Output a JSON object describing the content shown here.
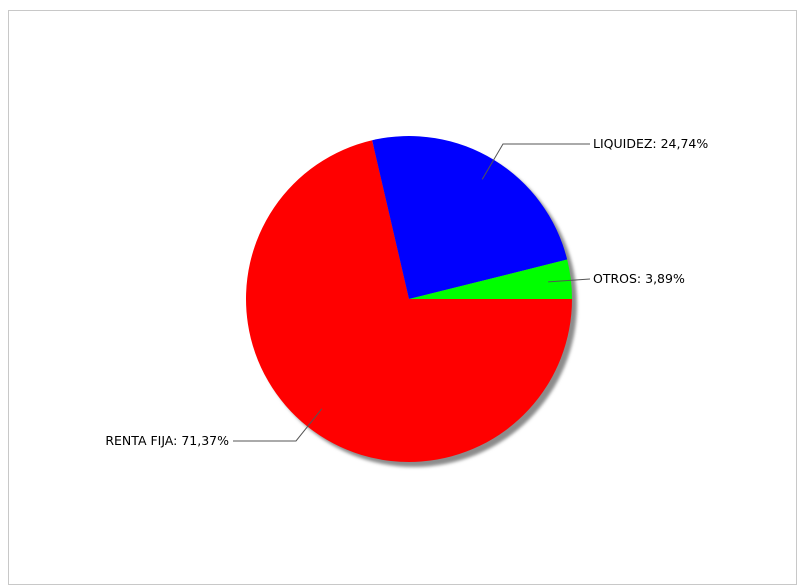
{
  "chart_data": {
    "type": "pie",
    "title": "",
    "slices": [
      {
        "label": "RENTA FIJA",
        "value": 71.37,
        "display": "RENTA FIJA: 71,37%",
        "color": "#ff0000"
      },
      {
        "label": "LIQUIDEZ",
        "value": 24.74,
        "display": "LIQUIDEZ: 24,74%",
        "color": "#0000ff"
      },
      {
        "label": "OTROS",
        "value": 3.89,
        "display": "OTROS: 3,89%",
        "color": "#00ff00"
      }
    ],
    "start_angle_deg": 0,
    "direction": "clockwise-from-east",
    "shadow": true,
    "legend": "none"
  }
}
